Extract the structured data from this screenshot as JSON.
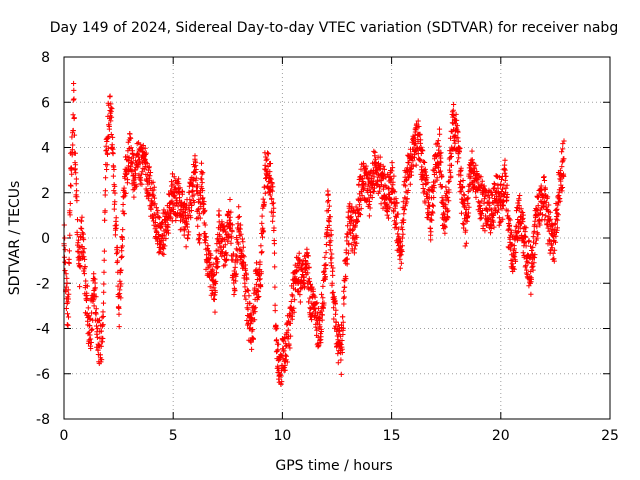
{
  "chart_data": {
    "type": "scatter",
    "title": "Day 149 of 2024, Sidereal Day-to-day VTEC variation (SDTVAR) for receiver nabg",
    "xlabel": "GPS time / hours",
    "ylabel": "SDTVAR / TECUs",
    "xlim": [
      0,
      25
    ],
    "ylim": [
      -8,
      8
    ],
    "x_ticks": [
      0,
      5,
      10,
      15,
      20,
      25
    ],
    "y_ticks": [
      -8,
      -6,
      -4,
      -2,
      0,
      2,
      4,
      6,
      8
    ],
    "grid": true,
    "marker": "plus",
    "color": "#ff0000",
    "data_extent_hours": [
      0,
      22.9
    ],
    "trace": [
      [
        0.0,
        0.5
      ],
      [
        0.1,
        -2.5
      ],
      [
        0.2,
        -3.0
      ],
      [
        0.25,
        0.0
      ],
      [
        0.3,
        2.5
      ],
      [
        0.4,
        4.5
      ],
      [
        0.45,
        6.3
      ],
      [
        0.5,
        3.5
      ],
      [
        0.6,
        1.0
      ],
      [
        0.7,
        -1.5
      ],
      [
        0.8,
        0.5
      ],
      [
        0.9,
        -1.0
      ],
      [
        1.0,
        -2.5
      ],
      [
        1.1,
        -3.5
      ],
      [
        1.2,
        -4.2
      ],
      [
        1.3,
        -3.0
      ],
      [
        1.4,
        -2.0
      ],
      [
        1.5,
        -4.3
      ],
      [
        1.6,
        -4.6
      ],
      [
        1.7,
        -4.9
      ],
      [
        1.8,
        -3.5
      ],
      [
        1.9,
        3.0
      ],
      [
        2.0,
        4.5
      ],
      [
        2.1,
        5.8
      ],
      [
        2.2,
        4.5
      ],
      [
        2.3,
        2.0
      ],
      [
        2.4,
        0.0
      ],
      [
        2.5,
        -3.3
      ],
      [
        2.6,
        -2.0
      ],
      [
        2.7,
        1.0
      ],
      [
        2.8,
        2.5
      ],
      [
        3.0,
        3.8
      ],
      [
        3.2,
        2.5
      ],
      [
        3.4,
        3.5
      ],
      [
        3.6,
        3.2
      ],
      [
        3.8,
        2.8
      ],
      [
        4.0,
        2.0
      ],
      [
        4.2,
        1.0
      ],
      [
        4.4,
        -0.2
      ],
      [
        4.6,
        0.3
      ],
      [
        4.8,
        1.0
      ],
      [
        5.0,
        2.0
      ],
      [
        5.3,
        1.5
      ],
      [
        5.6,
        0.5
      ],
      [
        5.8,
        1.8
      ],
      [
        6.0,
        2.8
      ],
      [
        6.2,
        0.5
      ],
      [
        6.3,
        3.0
      ],
      [
        6.5,
        -0.5
      ],
      [
        6.7,
        -1.5
      ],
      [
        6.9,
        -2.5
      ],
      [
        7.1,
        0.5
      ],
      [
        7.4,
        -0.5
      ],
      [
        7.6,
        1.0
      ],
      [
        7.8,
        -2.0
      ],
      [
        8.0,
        0.5
      ],
      [
        8.2,
        -1.0
      ],
      [
        8.4,
        -3.0
      ],
      [
        8.6,
        -4.2
      ],
      [
        8.8,
        -2.0
      ],
      [
        9.0,
        -1.5
      ],
      [
        9.2,
        2.8
      ],
      [
        9.4,
        3.0
      ],
      [
        9.6,
        1.0
      ],
      [
        9.7,
        -4.5
      ],
      [
        9.9,
        -5.8
      ],
      [
        10.1,
        -5.0
      ],
      [
        10.3,
        -4.2
      ],
      [
        10.5,
        -2.5
      ],
      [
        10.7,
        -1.5
      ],
      [
        10.9,
        -2.0
      ],
      [
        11.1,
        -1.2
      ],
      [
        11.3,
        -2.8
      ],
      [
        11.5,
        -3.5
      ],
      [
        11.7,
        -4.2
      ],
      [
        11.9,
        -2.5
      ],
      [
        12.1,
        1.5
      ],
      [
        12.3,
        -2.0
      ],
      [
        12.5,
        -4.5
      ],
      [
        12.7,
        -5.0
      ],
      [
        12.9,
        -1.0
      ],
      [
        13.1,
        1.0
      ],
      [
        13.3,
        0.0
      ],
      [
        13.5,
        1.8
      ],
      [
        13.7,
        2.5
      ],
      [
        14.0,
        2.0
      ],
      [
        14.2,
        3.0
      ],
      [
        14.5,
        2.5
      ],
      [
        14.8,
        1.8
      ],
      [
        15.0,
        2.5
      ],
      [
        15.2,
        1.0
      ],
      [
        15.4,
        -1.0
      ],
      [
        15.6,
        2.0
      ],
      [
        15.9,
        3.5
      ],
      [
        16.2,
        4.5
      ],
      [
        16.5,
        2.5
      ],
      [
        16.8,
        1.0
      ],
      [
        17.0,
        3.0
      ],
      [
        17.2,
        4.0
      ],
      [
        17.4,
        0.5
      ],
      [
        17.6,
        2.0
      ],
      [
        17.8,
        5.0
      ],
      [
        18.0,
        4.5
      ],
      [
        18.2,
        2.0
      ],
      [
        18.4,
        0.5
      ],
      [
        18.6,
        3.0
      ],
      [
        18.9,
        2.2
      ],
      [
        19.2,
        1.5
      ],
      [
        19.5,
        1.0
      ],
      [
        19.8,
        2.0
      ],
      [
        20.0,
        1.5
      ],
      [
        20.2,
        2.5
      ],
      [
        20.4,
        0.0
      ],
      [
        20.6,
        -1.0
      ],
      [
        20.8,
        1.0
      ],
      [
        21.0,
        0.5
      ],
      [
        21.2,
        -1.0
      ],
      [
        21.4,
        -1.5
      ],
      [
        21.6,
        0.5
      ],
      [
        21.8,
        1.5
      ],
      [
        22.0,
        2.0
      ],
      [
        22.2,
        0.5
      ],
      [
        22.4,
        -0.5
      ],
      [
        22.6,
        1.5
      ],
      [
        22.8,
        3.0
      ],
      [
        22.9,
        3.8
      ]
    ],
    "sampling_interval_hours": 0.008,
    "noise_amplitude_tecu": 0.9
  }
}
